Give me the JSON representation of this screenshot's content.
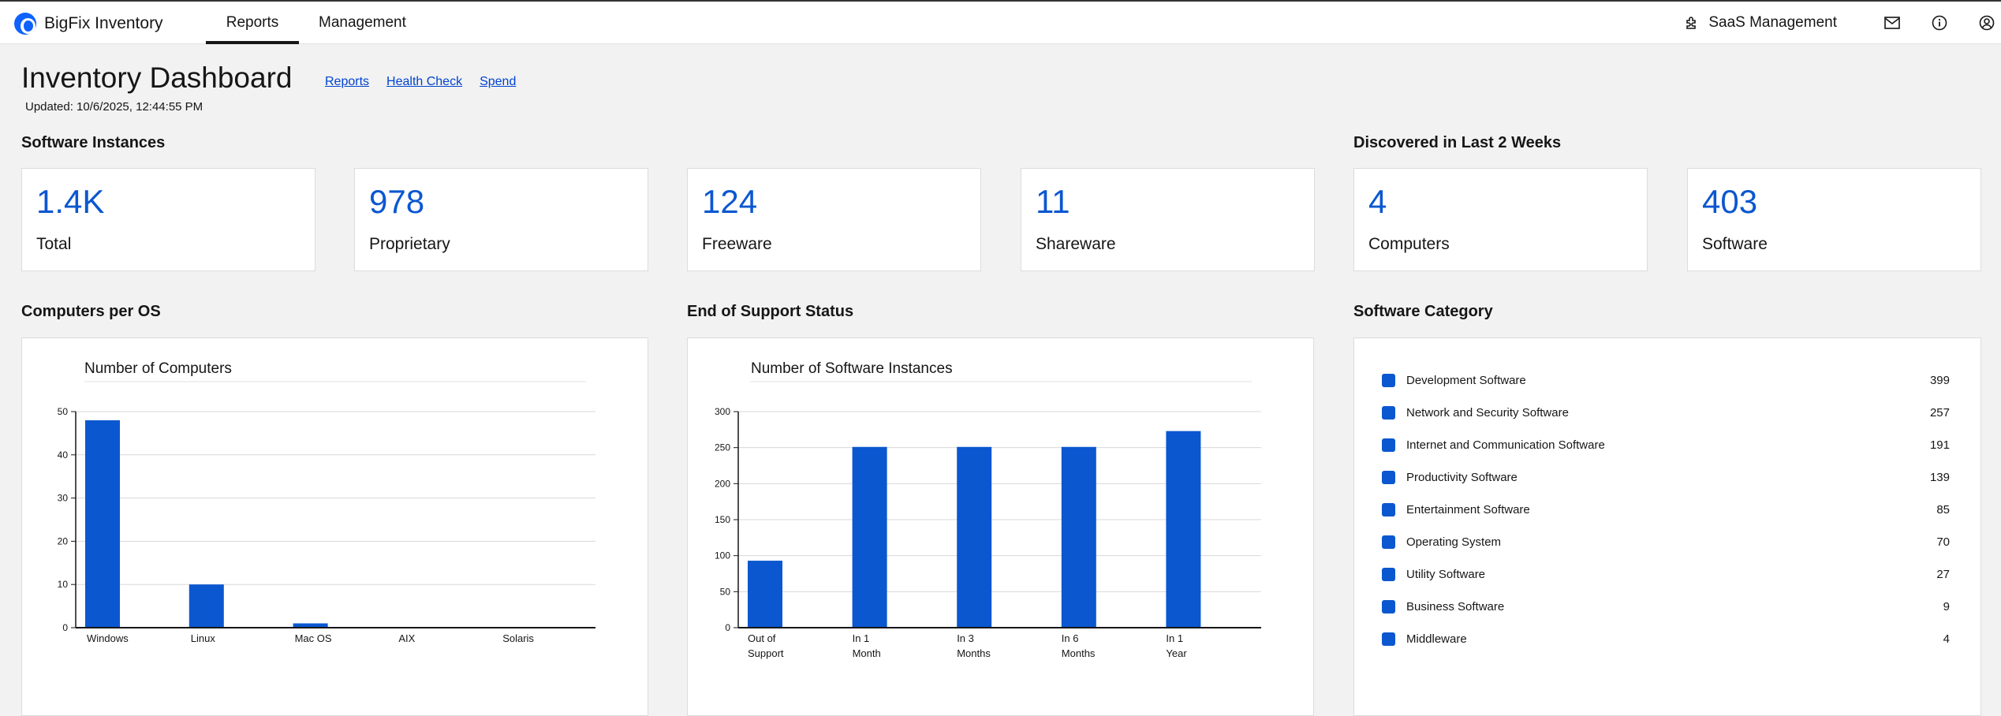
{
  "app": {
    "name": "BigFix Inventory",
    "tabs": [
      {
        "label": "Reports"
      },
      {
        "label": "Management"
      }
    ],
    "saas_label": "SaaS Management"
  },
  "header": {
    "title": "Inventory Dashboard",
    "links": [
      "Reports",
      "Health Check",
      "Spend"
    ],
    "updated": "Updated: 10/6/2025, 12:44:55 PM"
  },
  "sections": {
    "software_instances": "Software Instances",
    "discovered": "Discovered in Last 2 Weeks",
    "computers_per_os": "Computers per OS",
    "end_of_support": "End of Support Status",
    "software_category": "Software Category"
  },
  "tiles": [
    {
      "value": "1.4K",
      "label": "Total"
    },
    {
      "value": "978",
      "label": "Proprietary"
    },
    {
      "value": "124",
      "label": "Freeware"
    },
    {
      "value": "11",
      "label": "Shareware"
    },
    {
      "value": "4",
      "label": "Computers"
    },
    {
      "value": "403",
      "label": "Software"
    }
  ],
  "chart_data": [
    {
      "type": "bar",
      "title": "Number of Computers",
      "categories": [
        "Windows",
        "Linux",
        "Mac OS",
        "AIX",
        "Solaris"
      ],
      "values": [
        48,
        10,
        1,
        0,
        0
      ],
      "ylim": [
        0,
        50
      ],
      "yticks": [
        0,
        10,
        20,
        30,
        40,
        50
      ],
      "grid": true,
      "color": "#0b57d0"
    },
    {
      "type": "bar",
      "title": "Number of Software Instances",
      "categories": [
        [
          "Out of",
          "Support"
        ],
        [
          "In 1",
          "Month"
        ],
        [
          "In 3",
          "Months"
        ],
        [
          "In 6",
          "Months"
        ],
        [
          "In 1",
          "Year"
        ]
      ],
      "values": [
        93,
        251,
        251,
        251,
        273
      ],
      "ylim": [
        0,
        300
      ],
      "yticks": [
        0,
        50,
        100,
        150,
        200,
        250,
        300
      ],
      "grid": true,
      "color": "#0b57d0"
    }
  ],
  "software_category": [
    {
      "name": "Development Software",
      "value": "399"
    },
    {
      "name": "Network and Security Software",
      "value": "257"
    },
    {
      "name": "Internet and Communication Software",
      "value": "191"
    },
    {
      "name": "Productivity Software",
      "value": "139"
    },
    {
      "name": "Entertainment Software",
      "value": "85"
    },
    {
      "name": "Operating System",
      "value": "70"
    },
    {
      "name": "Utility Software",
      "value": "27"
    },
    {
      "name": "Business Software",
      "value": "9"
    },
    {
      "name": "Middleware",
      "value": "4"
    }
  ]
}
